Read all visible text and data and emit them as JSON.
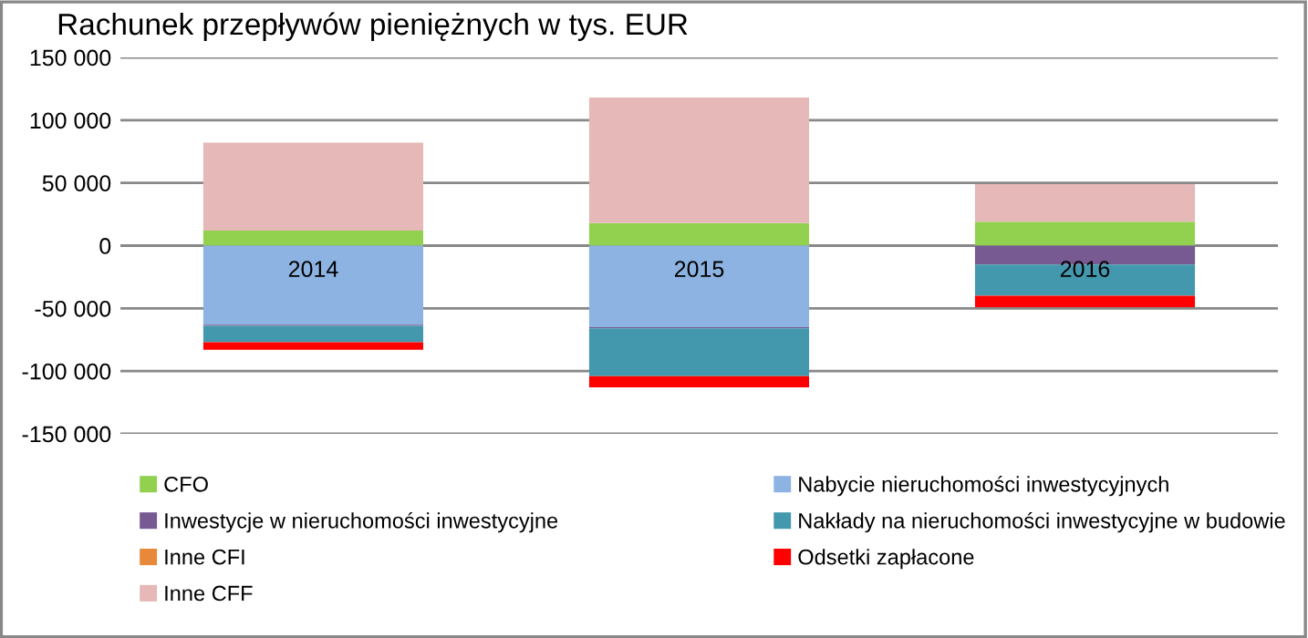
{
  "chart_data": {
    "type": "bar",
    "title": "Rachunek przepływów pieniężnych w tys. EUR",
    "categories": [
      "2014",
      "2015",
      "2016"
    ],
    "stacked": true,
    "series": [
      {
        "name": "CFO",
        "color": "#92d050",
        "values": [
          12000,
          18000,
          19000
        ]
      },
      {
        "name": "Nabycie nieruchomości inwestycyjnych",
        "color": "#8db3e2",
        "values": [
          -63000,
          -65000,
          0
        ]
      },
      {
        "name": "Inwestycje w nieruchomości inwestycyjne",
        "color": "#765a91",
        "values": [
          -1000,
          -1000,
          -15000
        ]
      },
      {
        "name": "Nakłady na nieruchomości inwestycyjne w budowie",
        "color": "#4398ae",
        "values": [
          -13000,
          -38000,
          -25000
        ]
      },
      {
        "name": "Inne CFI",
        "color": "#e8883a",
        "values": [
          0,
          0,
          0
        ]
      },
      {
        "name": "Odsetki zapłacone",
        "color": "#ff0000",
        "values": [
          -6000,
          -9000,
          -9000
        ]
      },
      {
        "name": "Inne CFF",
        "color": "#e6b8b7",
        "values": [
          70000,
          100000,
          30000
        ]
      }
    ],
    "ylim": [
      -150000,
      150000
    ],
    "yticks": [
      {
        "value": -150000,
        "label": "-150 000"
      },
      {
        "value": -100000,
        "label": "-100 000"
      },
      {
        "value": -50000,
        "label": "-50 000"
      },
      0,
      {
        "value": 50000,
        "label": "50 000"
      },
      {
        "value": 100000,
        "label": "100 000"
      },
      {
        "value": 150000,
        "label": "150 000"
      }
    ],
    "grid": "y",
    "legend": "bottom"
  }
}
